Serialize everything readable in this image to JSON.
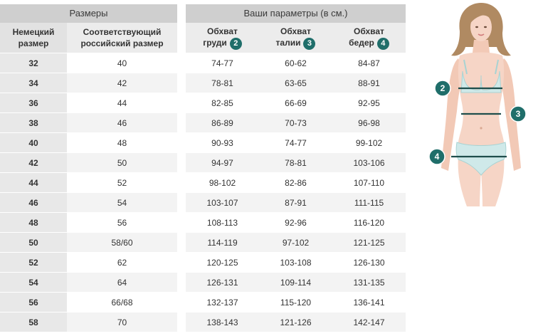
{
  "sizes_table": {
    "title": "Размеры",
    "col_german": [
      "Немецкий",
      "размер"
    ],
    "col_russian": [
      "Соответствующий",
      "российский размер"
    ],
    "rows": [
      {
        "german": "32",
        "russian": "40"
      },
      {
        "german": "34",
        "russian": "42"
      },
      {
        "german": "36",
        "russian": "44"
      },
      {
        "german": "38",
        "russian": "46"
      },
      {
        "german": "40",
        "russian": "48"
      },
      {
        "german": "42",
        "russian": "50"
      },
      {
        "german": "44",
        "russian": "52"
      },
      {
        "german": "46",
        "russian": "54"
      },
      {
        "german": "48",
        "russian": "56"
      },
      {
        "german": "50",
        "russian": "58/60"
      },
      {
        "german": "52",
        "russian": "62"
      },
      {
        "german": "54",
        "russian": "64"
      },
      {
        "german": "56",
        "russian": "66/68"
      },
      {
        "german": "58",
        "russian": "70"
      }
    ]
  },
  "params_table": {
    "title": "Ваши параметры (в см.)",
    "columns": [
      {
        "line1": "Обхват",
        "line2": "груди",
        "badge": "2"
      },
      {
        "line1": "Обхват",
        "line2": "талии",
        "badge": "3"
      },
      {
        "line1": "Обхват",
        "line2": "бедер",
        "badge": "4"
      }
    ],
    "rows": [
      [
        "74-77",
        "60-62",
        "84-87"
      ],
      [
        "78-81",
        "63-65",
        "88-91"
      ],
      [
        "82-85",
        "66-69",
        "92-95"
      ],
      [
        "86-89",
        "70-73",
        "96-98"
      ],
      [
        "90-93",
        "74-77",
        "99-102"
      ],
      [
        "94-97",
        "78-81",
        "103-106"
      ],
      [
        "98-102",
        "82-86",
        "107-110"
      ],
      [
        "103-107",
        "87-91",
        "111-115"
      ],
      [
        "108-113",
        "92-96",
        "116-120"
      ],
      [
        "114-119",
        "97-102",
        "121-125"
      ],
      [
        "120-125",
        "103-108",
        "126-130"
      ],
      [
        "126-131",
        "109-114",
        "131-135"
      ],
      [
        "132-137",
        "115-120",
        "136-141"
      ],
      [
        "138-143",
        "121-126",
        "142-147"
      ]
    ]
  },
  "figure": {
    "markers": [
      "2",
      "3",
      "4"
    ],
    "colors": {
      "skin": "#f6d5c6",
      "hair": "#b08a62",
      "garment": "#cfe9e9",
      "badge": "#1f6e6a",
      "line": "#1f4e4c"
    }
  }
}
